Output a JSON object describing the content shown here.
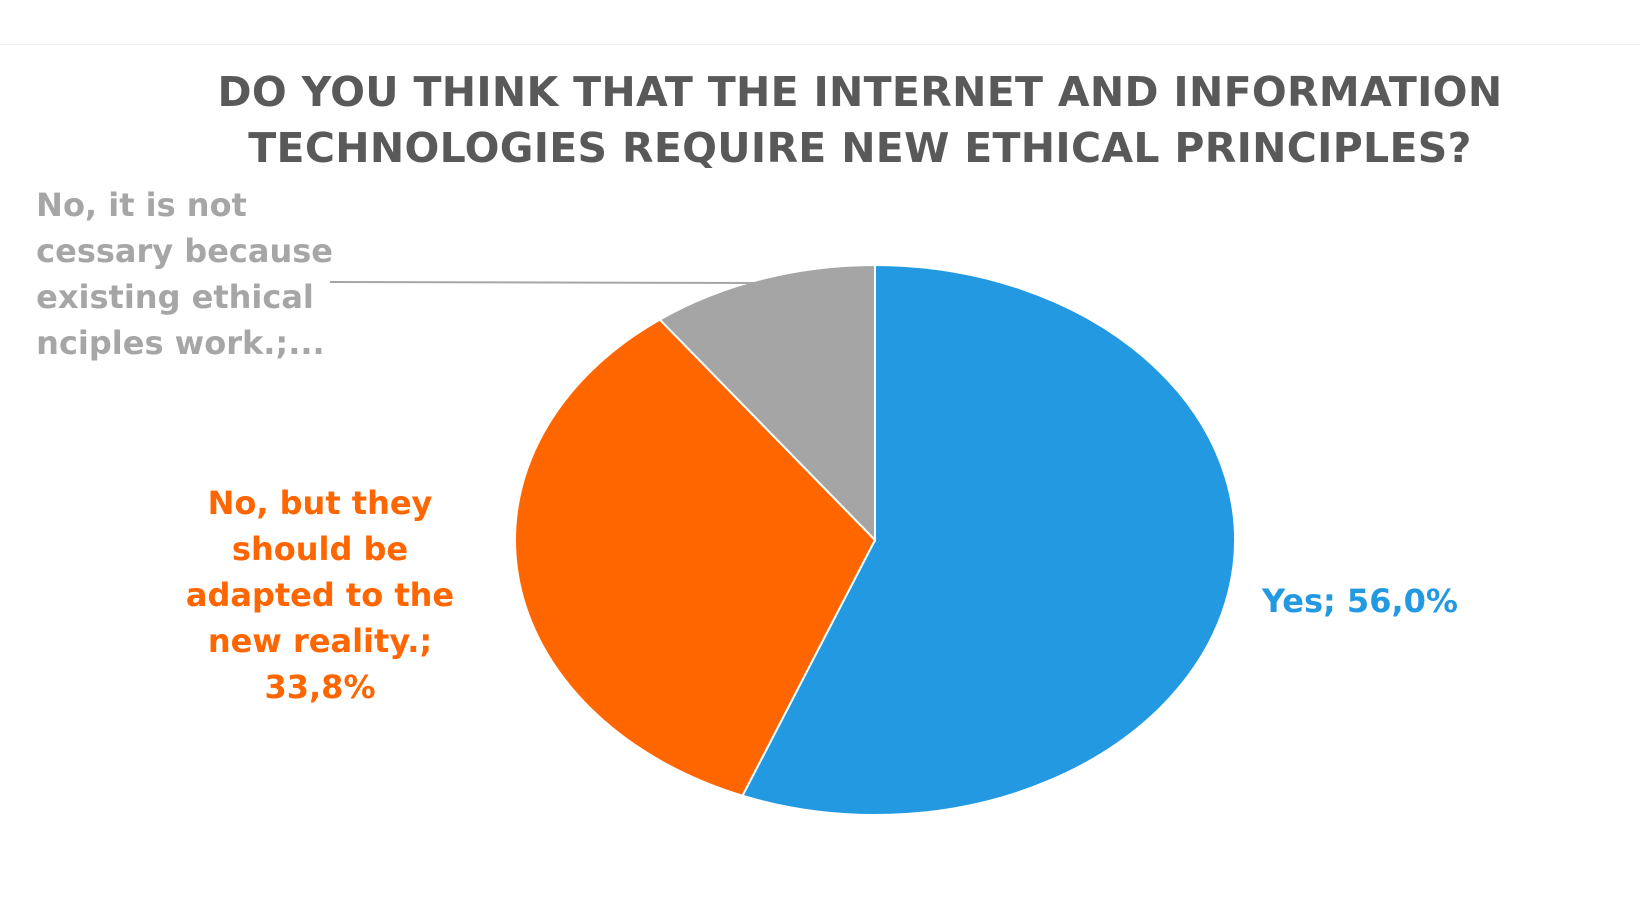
{
  "title_lines": [
    "DO YOU THINK THAT THE INTERNET AND INFORMATION",
    "TECHNOLOGIES REQUIRE NEW ETHICAL PRINCIPLES?"
  ],
  "chart_data": {
    "type": "pie",
    "title": "DO YOU THINK THAT THE INTERNET AND INFORMATION TECHNOLOGIES REQUIRE NEW ETHICAL PRINCIPLES?",
    "start": "12 o'clock, clockwise",
    "slices": [
      {
        "label": "Yes",
        "value": 56.0,
        "color": "#2399e2"
      },
      {
        "label": "No, but they should be adapted to the new reality.",
        "value": 33.8,
        "color": "#ff6600"
      },
      {
        "label": "No, it is not necessary because the existing ethical principles work.",
        "value": 10.2,
        "color": "#a5a5a5"
      }
    ],
    "data_labels": {
      "yes": [
        "Yes; 56,0%"
      ],
      "adapt": [
        "No, but they",
        "should be",
        "adapted to the",
        "new reality.;",
        "33,8%"
      ],
      "not_necessary": [
        "No, it is not",
        "cessary because",
        "existing ethical",
        "nciples work.;..."
      ]
    },
    "leader_line": "not_necessary",
    "legend": "none"
  }
}
